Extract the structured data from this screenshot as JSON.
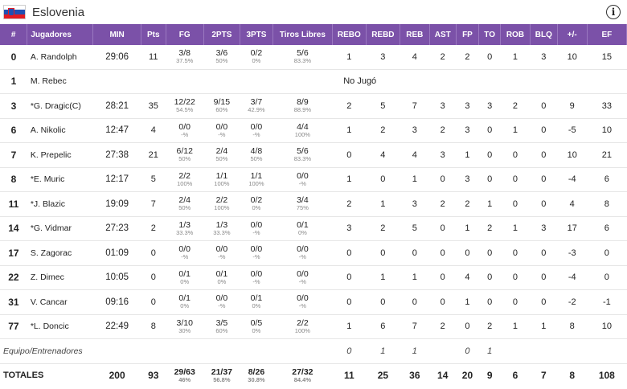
{
  "team": {
    "name": "Eslovenia",
    "flag": "slovenia-flag"
  },
  "headers": [
    "#",
    "Jugadores",
    "MIN",
    "Pts",
    "FG",
    "2PTS",
    "3PTS",
    "Tiros Libres",
    "REBO",
    "REBD",
    "REB",
    "AST",
    "FP",
    "TO",
    "ROB",
    "BLQ",
    "+/-",
    "EF"
  ],
  "rows": [
    {
      "num": "0",
      "name": "A. Randolph",
      "min": "29:06",
      "pts": "11",
      "fg": {
        "m": "3/8",
        "p": "37.5%"
      },
      "two": {
        "m": "3/6",
        "p": "50%"
      },
      "three": {
        "m": "0/2",
        "p": "0%"
      },
      "ft": {
        "m": "5/6",
        "p": "83.3%"
      },
      "rebo": "1",
      "rebd": "3",
      "reb": "4",
      "ast": "2",
      "fp": "2",
      "to": "0",
      "rob": "1",
      "blq": "3",
      "pm": "10",
      "ef": "15"
    },
    {
      "num": "1",
      "name": "M. Rebec",
      "dnp": "No Jugó"
    },
    {
      "num": "3",
      "name": "*G. Dragic(C)",
      "min": "28:21",
      "pts": "35",
      "fg": {
        "m": "12/22",
        "p": "54.5%"
      },
      "two": {
        "m": "9/15",
        "p": "60%"
      },
      "three": {
        "m": "3/7",
        "p": "42.9%"
      },
      "ft": {
        "m": "8/9",
        "p": "88.9%"
      },
      "rebo": "2",
      "rebd": "5",
      "reb": "7",
      "ast": "3",
      "fp": "3",
      "to": "3",
      "rob": "2",
      "blq": "0",
      "pm": "9",
      "ef": "33"
    },
    {
      "num": "6",
      "name": "A. Nikolic",
      "min": "12:47",
      "pts": "4",
      "fg": {
        "m": "0/0",
        "p": "-%"
      },
      "two": {
        "m": "0/0",
        "p": "-%"
      },
      "three": {
        "m": "0/0",
        "p": "-%"
      },
      "ft": {
        "m": "4/4",
        "p": "100%"
      },
      "rebo": "1",
      "rebd": "2",
      "reb": "3",
      "ast": "2",
      "fp": "3",
      "to": "0",
      "rob": "1",
      "blq": "0",
      "pm": "-5",
      "ef": "10"
    },
    {
      "num": "7",
      "name": "K. Prepelic",
      "min": "27:38",
      "pts": "21",
      "fg": {
        "m": "6/12",
        "p": "50%"
      },
      "two": {
        "m": "2/4",
        "p": "50%"
      },
      "three": {
        "m": "4/8",
        "p": "50%"
      },
      "ft": {
        "m": "5/6",
        "p": "83.3%"
      },
      "rebo": "0",
      "rebd": "4",
      "reb": "4",
      "ast": "3",
      "fp": "1",
      "to": "0",
      "rob": "0",
      "blq": "0",
      "pm": "10",
      "ef": "21"
    },
    {
      "num": "8",
      "name": "*E. Muric",
      "min": "12:17",
      "pts": "5",
      "fg": {
        "m": "2/2",
        "p": "100%"
      },
      "two": {
        "m": "1/1",
        "p": "100%"
      },
      "three": {
        "m": "1/1",
        "p": "100%"
      },
      "ft": {
        "m": "0/0",
        "p": "-%"
      },
      "rebo": "1",
      "rebd": "0",
      "reb": "1",
      "ast": "0",
      "fp": "3",
      "to": "0",
      "rob": "0",
      "blq": "0",
      "pm": "-4",
      "ef": "6"
    },
    {
      "num": "11",
      "name": "*J. Blazic",
      "min": "19:09",
      "pts": "7",
      "fg": {
        "m": "2/4",
        "p": "50%"
      },
      "two": {
        "m": "2/2",
        "p": "100%"
      },
      "three": {
        "m": "0/2",
        "p": "0%"
      },
      "ft": {
        "m": "3/4",
        "p": "75%"
      },
      "rebo": "2",
      "rebd": "1",
      "reb": "3",
      "ast": "2",
      "fp": "2",
      "to": "1",
      "rob": "0",
      "blq": "0",
      "pm": "4",
      "ef": "8"
    },
    {
      "num": "14",
      "name": "*G. Vidmar",
      "min": "27:23",
      "pts": "2",
      "fg": {
        "m": "1/3",
        "p": "33.3%"
      },
      "two": {
        "m": "1/3",
        "p": "33.3%"
      },
      "three": {
        "m": "0/0",
        "p": "-%"
      },
      "ft": {
        "m": "0/1",
        "p": "0%"
      },
      "rebo": "3",
      "rebd": "2",
      "reb": "5",
      "ast": "0",
      "fp": "1",
      "to": "2",
      "rob": "1",
      "blq": "3",
      "pm": "17",
      "ef": "6"
    },
    {
      "num": "17",
      "name": "S. Zagorac",
      "min": "01:09",
      "pts": "0",
      "fg": {
        "m": "0/0",
        "p": "-%"
      },
      "two": {
        "m": "0/0",
        "p": "-%"
      },
      "three": {
        "m": "0/0",
        "p": "-%"
      },
      "ft": {
        "m": "0/0",
        "p": "-%"
      },
      "rebo": "0",
      "rebd": "0",
      "reb": "0",
      "ast": "0",
      "fp": "0",
      "to": "0",
      "rob": "0",
      "blq": "0",
      "pm": "-3",
      "ef": "0"
    },
    {
      "num": "22",
      "name": "Z. Dimec",
      "min": "10:05",
      "pts": "0",
      "fg": {
        "m": "0/1",
        "p": "0%"
      },
      "two": {
        "m": "0/1",
        "p": "0%"
      },
      "three": {
        "m": "0/0",
        "p": "-%"
      },
      "ft": {
        "m": "0/0",
        "p": "-%"
      },
      "rebo": "0",
      "rebd": "1",
      "reb": "1",
      "ast": "0",
      "fp": "4",
      "to": "0",
      "rob": "0",
      "blq": "0",
      "pm": "-4",
      "ef": "0"
    },
    {
      "num": "31",
      "name": "V. Cancar",
      "min": "09:16",
      "pts": "0",
      "fg": {
        "m": "0/1",
        "p": "0%"
      },
      "two": {
        "m": "0/0",
        "p": "-%"
      },
      "three": {
        "m": "0/1",
        "p": "0%"
      },
      "ft": {
        "m": "0/0",
        "p": "-%"
      },
      "rebo": "0",
      "rebd": "0",
      "reb": "0",
      "ast": "0",
      "fp": "1",
      "to": "0",
      "rob": "0",
      "blq": "0",
      "pm": "-2",
      "ef": "-1"
    },
    {
      "num": "77",
      "name": "*L. Doncic",
      "min": "22:49",
      "pts": "8",
      "fg": {
        "m": "3/10",
        "p": "30%"
      },
      "two": {
        "m": "3/5",
        "p": "60%"
      },
      "three": {
        "m": "0/5",
        "p": "0%"
      },
      "ft": {
        "m": "2/2",
        "p": "100%"
      },
      "rebo": "1",
      "rebd": "6",
      "reb": "7",
      "ast": "2",
      "fp": "0",
      "to": "2",
      "rob": "1",
      "blq": "1",
      "pm": "8",
      "ef": "10"
    }
  ],
  "staff": {
    "label": "Equipo/Entrenadores",
    "rebo": "0",
    "rebd": "1",
    "reb": "1",
    "ast": "",
    "fp": "0",
    "to": "1",
    "rob": "",
    "blq": "",
    "pm": "",
    "ef": ""
  },
  "totals": {
    "label": "TOTALES",
    "min": "200",
    "pts": "93",
    "fg": {
      "m": "29/63",
      "p": "46%"
    },
    "two": {
      "m": "21/37",
      "p": "56.8%"
    },
    "three": {
      "m": "8/26",
      "p": "30.8%"
    },
    "ft": {
      "m": "27/32",
      "p": "84.4%"
    },
    "rebo": "11",
    "rebd": "25",
    "reb": "36",
    "ast": "14",
    "fp": "20",
    "to": "9",
    "rob": "6",
    "blq": "7",
    "pm": "8",
    "ef": "108"
  },
  "colors": {
    "header_bg": "#7b51a8",
    "header_text": "#ffffff"
  }
}
